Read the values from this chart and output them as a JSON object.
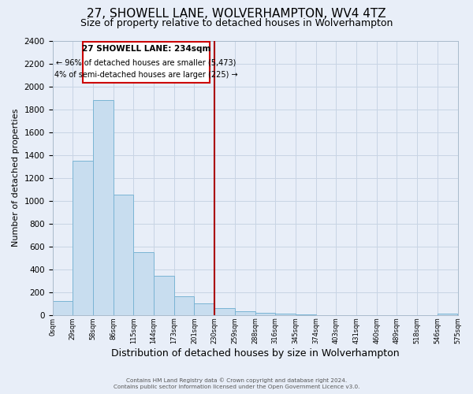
{
  "title": "27, SHOWELL LANE, WOLVERHAMPTON, WV4 4TZ",
  "subtitle": "Size of property relative to detached houses in Wolverhampton",
  "xlabel": "Distribution of detached houses by size in Wolverhampton",
  "ylabel": "Number of detached properties",
  "footer_line1": "Contains HM Land Registry data © Crown copyright and database right 2024.",
  "footer_line2": "Contains public sector information licensed under the Open Government Licence v3.0.",
  "bin_labels": [
    "0sqm",
    "29sqm",
    "58sqm",
    "86sqm",
    "115sqm",
    "144sqm",
    "173sqm",
    "201sqm",
    "230sqm",
    "259sqm",
    "288sqm",
    "316sqm",
    "345sqm",
    "374sqm",
    "403sqm",
    "431sqm",
    "460sqm",
    "489sqm",
    "518sqm",
    "546sqm",
    "575sqm"
  ],
  "bar_heights": [
    125,
    1350,
    1880,
    1050,
    550,
    340,
    165,
    105,
    60,
    30,
    20,
    10,
    5,
    0,
    0,
    0,
    0,
    0,
    0,
    15
  ],
  "bar_color": "#c8ddef",
  "bar_edge_color": "#7ab4d4",
  "vline_x": 8.0,
  "vline_color": "#aa0000",
  "annotation_box_title": "27 SHOWELL LANE: 234sqm",
  "annotation_line2": "← 96% of detached houses are smaller (5,473)",
  "annotation_line3": "4% of semi-detached houses are larger (225) →",
  "annotation_box_color": "#ffffff",
  "annotation_box_edge_color": "#cc0000",
  "ylim": [
    0,
    2400
  ],
  "yticks": [
    0,
    200,
    400,
    600,
    800,
    1000,
    1200,
    1400,
    1600,
    1800,
    2000,
    2200,
    2400
  ],
  "grid_color": "#c8d4e4",
  "background_color": "#e8eef8",
  "title_fontsize": 11,
  "subtitle_fontsize": 9,
  "xlabel_fontsize": 9,
  "ylabel_fontsize": 8
}
